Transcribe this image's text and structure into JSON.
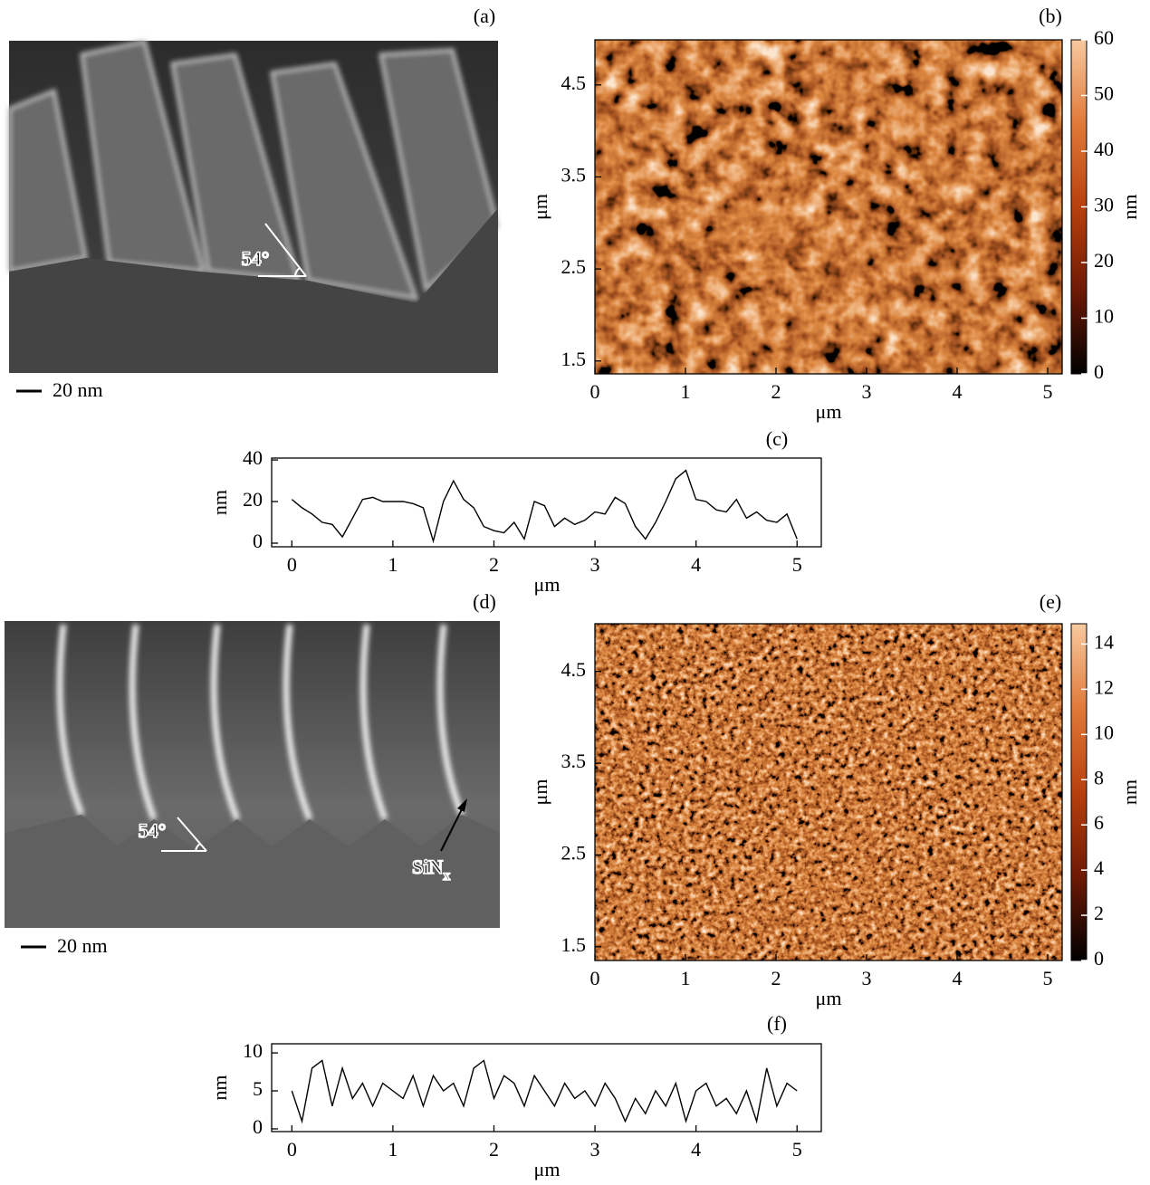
{
  "panels": {
    "a": {
      "label": "(a)",
      "scale_bar": "20 nm",
      "angle": "54°"
    },
    "d": {
      "label": "(d)",
      "scale_bar": "20 nm",
      "angle": "54°",
      "annotation": "SiN",
      "annotation_sub": "x"
    }
  },
  "chart_data": [
    {
      "type": "heatmap",
      "label": "(b)",
      "xlabel": "μm",
      "ylabel": "μm",
      "xlim": [
        0,
        5.16
      ],
      "ylim": [
        1.36,
        4.99
      ],
      "xticks": [
        0,
        1,
        2,
        3,
        4,
        5
      ],
      "yticks": [
        1.5,
        2.5,
        3.5,
        4.5
      ],
      "colorbar": {
        "label": "nm",
        "lim": [
          0,
          60
        ],
        "ticks": [
          0,
          10,
          20,
          30,
          40,
          50,
          60
        ],
        "colors": [
          "#000000",
          "#6e1a05",
          "#b8400e",
          "#e07a3a",
          "#f7c9a0"
        ]
      }
    },
    {
      "type": "line",
      "label": "(c)",
      "xlabel": "μm",
      "ylabel": "nm",
      "color": "#000000",
      "xlim": [
        -0.2,
        5.24
      ],
      "ylim": [
        -1.74,
        40.9
      ],
      "xticks": [
        0,
        1,
        2,
        3,
        4,
        5
      ],
      "yticks": [
        0,
        20,
        40
      ],
      "x": [
        0,
        0.1,
        0.2,
        0.3,
        0.4,
        0.5,
        0.6,
        0.7,
        0.8,
        0.9,
        1,
        1.1,
        1.2,
        1.3,
        1.4,
        1.5,
        1.6,
        1.7,
        1.8,
        1.9,
        2,
        2.1,
        2.2,
        2.3,
        2.4,
        2.5,
        2.6,
        2.7,
        2.8,
        2.9,
        3,
        3.1,
        3.2,
        3.3,
        3.4,
        3.5,
        3.6,
        3.7,
        3.8,
        3.9,
        4,
        4.1,
        4.2,
        4.3,
        4.4,
        4.5,
        4.6,
        4.7,
        4.8,
        4.9,
        5
      ],
      "values": [
        21,
        17,
        14,
        10,
        9,
        3,
        12,
        21,
        22,
        20,
        20,
        20,
        19,
        17,
        1,
        20,
        30,
        21,
        17,
        8,
        6,
        5,
        10,
        2,
        20,
        18,
        8,
        12,
        9,
        11,
        15,
        14,
        22,
        19,
        8,
        2,
        10,
        20,
        31,
        35,
        21,
        20,
        16,
        15,
        21,
        12,
        15,
        11,
        10,
        14,
        2
      ]
    },
    {
      "type": "heatmap",
      "label": "(e)",
      "xlabel": "μm",
      "ylabel": "μm",
      "xlim": [
        0,
        5.16
      ],
      "ylim": [
        1.35,
        5.02
      ],
      "xticks": [
        0,
        1,
        2,
        3,
        4,
        5
      ],
      "yticks": [
        1.5,
        2.5,
        3.5,
        4.5
      ],
      "colorbar": {
        "label": "nm",
        "lim": [
          0,
          14.9
        ],
        "ticks": [
          0,
          2,
          4,
          6,
          8,
          10,
          12,
          14
        ],
        "colors": [
          "#000000",
          "#6e1a05",
          "#b8400e",
          "#e07a3a",
          "#f7c9a0"
        ]
      }
    },
    {
      "type": "line",
      "label": "(f)",
      "xlabel": "μm",
      "ylabel": "nm",
      "color": "#000000",
      "xlim": [
        -0.2,
        5.24
      ],
      "ylim": [
        -0.36,
        11.2
      ],
      "xticks": [
        0,
        1,
        2,
        3,
        4,
        5
      ],
      "yticks": [
        0,
        5,
        10
      ],
      "x": [
        0,
        0.1,
        0.2,
        0.3,
        0.4,
        0.5,
        0.6,
        0.7,
        0.8,
        0.9,
        1,
        1.1,
        1.2,
        1.3,
        1.4,
        1.5,
        1.6,
        1.7,
        1.8,
        1.9,
        2,
        2.1,
        2.2,
        2.3,
        2.4,
        2.5,
        2.6,
        2.7,
        2.8,
        2.9,
        3,
        3.1,
        3.2,
        3.3,
        3.4,
        3.5,
        3.6,
        3.7,
        3.8,
        3.9,
        4,
        4.1,
        4.2,
        4.3,
        4.4,
        4.5,
        4.6,
        4.7,
        4.8,
        4.9,
        5
      ],
      "values": [
        5,
        1,
        8,
        9,
        3,
        8,
        4,
        6,
        3,
        6,
        5,
        4,
        7,
        3,
        7,
        5,
        6,
        3,
        8,
        9,
        4,
        7,
        6,
        3,
        7,
        5,
        3,
        6,
        4,
        5,
        3,
        6,
        4,
        1,
        4,
        2,
        5,
        3,
        6,
        1,
        5,
        6,
        3,
        4,
        2,
        5,
        1,
        8,
        3,
        6,
        5
      ]
    }
  ]
}
